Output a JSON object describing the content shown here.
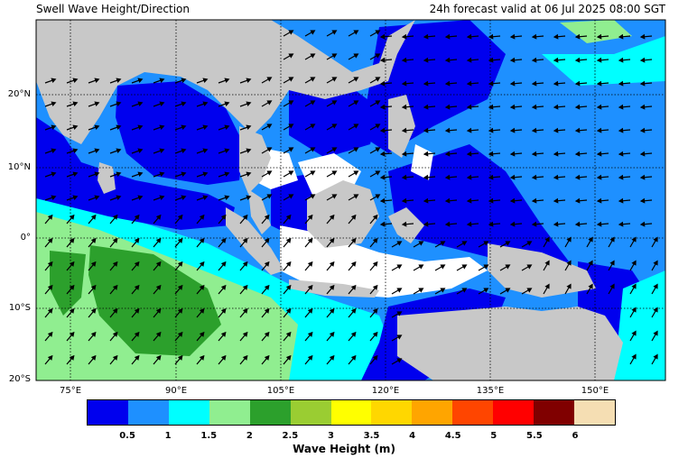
{
  "title_left": "Swell Wave Height/Direction",
  "title_right": "24h forecast valid at 06 Jul 2025 08:00 SGT",
  "y_ticks": [
    "20°N",
    "10°N",
    "0°",
    "10°S",
    "20°S"
  ],
  "x_ticks": [
    "75°E",
    "90°E",
    "105°E",
    "120°E",
    "135°E",
    "150°E"
  ],
  "colorbar": {
    "colors": [
      "#0000ee",
      "#1e90ff",
      "#00ffff",
      "#90ee90",
      "#2ca02c",
      "#9acd32",
      "#ffff00",
      "#ffd700",
      "#ffa500",
      "#ff4500",
      "#ff0000",
      "#800000",
      "#f5deb3"
    ],
    "labels": [
      "0.5",
      "1",
      "1.5",
      "2",
      "2.5",
      "3",
      "3.5",
      "4",
      "4.5",
      "5",
      "5.5",
      "6"
    ],
    "title": "Wave Height (m)"
  },
  "map_colors": {
    "land": "#c8c8c8",
    "deep_blue": "#0000ee",
    "mid_blue": "#1e90ff",
    "cyan": "#00ffff",
    "light_green": "#90ee90",
    "green": "#2ca02c",
    "calm": "#ffffff"
  }
}
